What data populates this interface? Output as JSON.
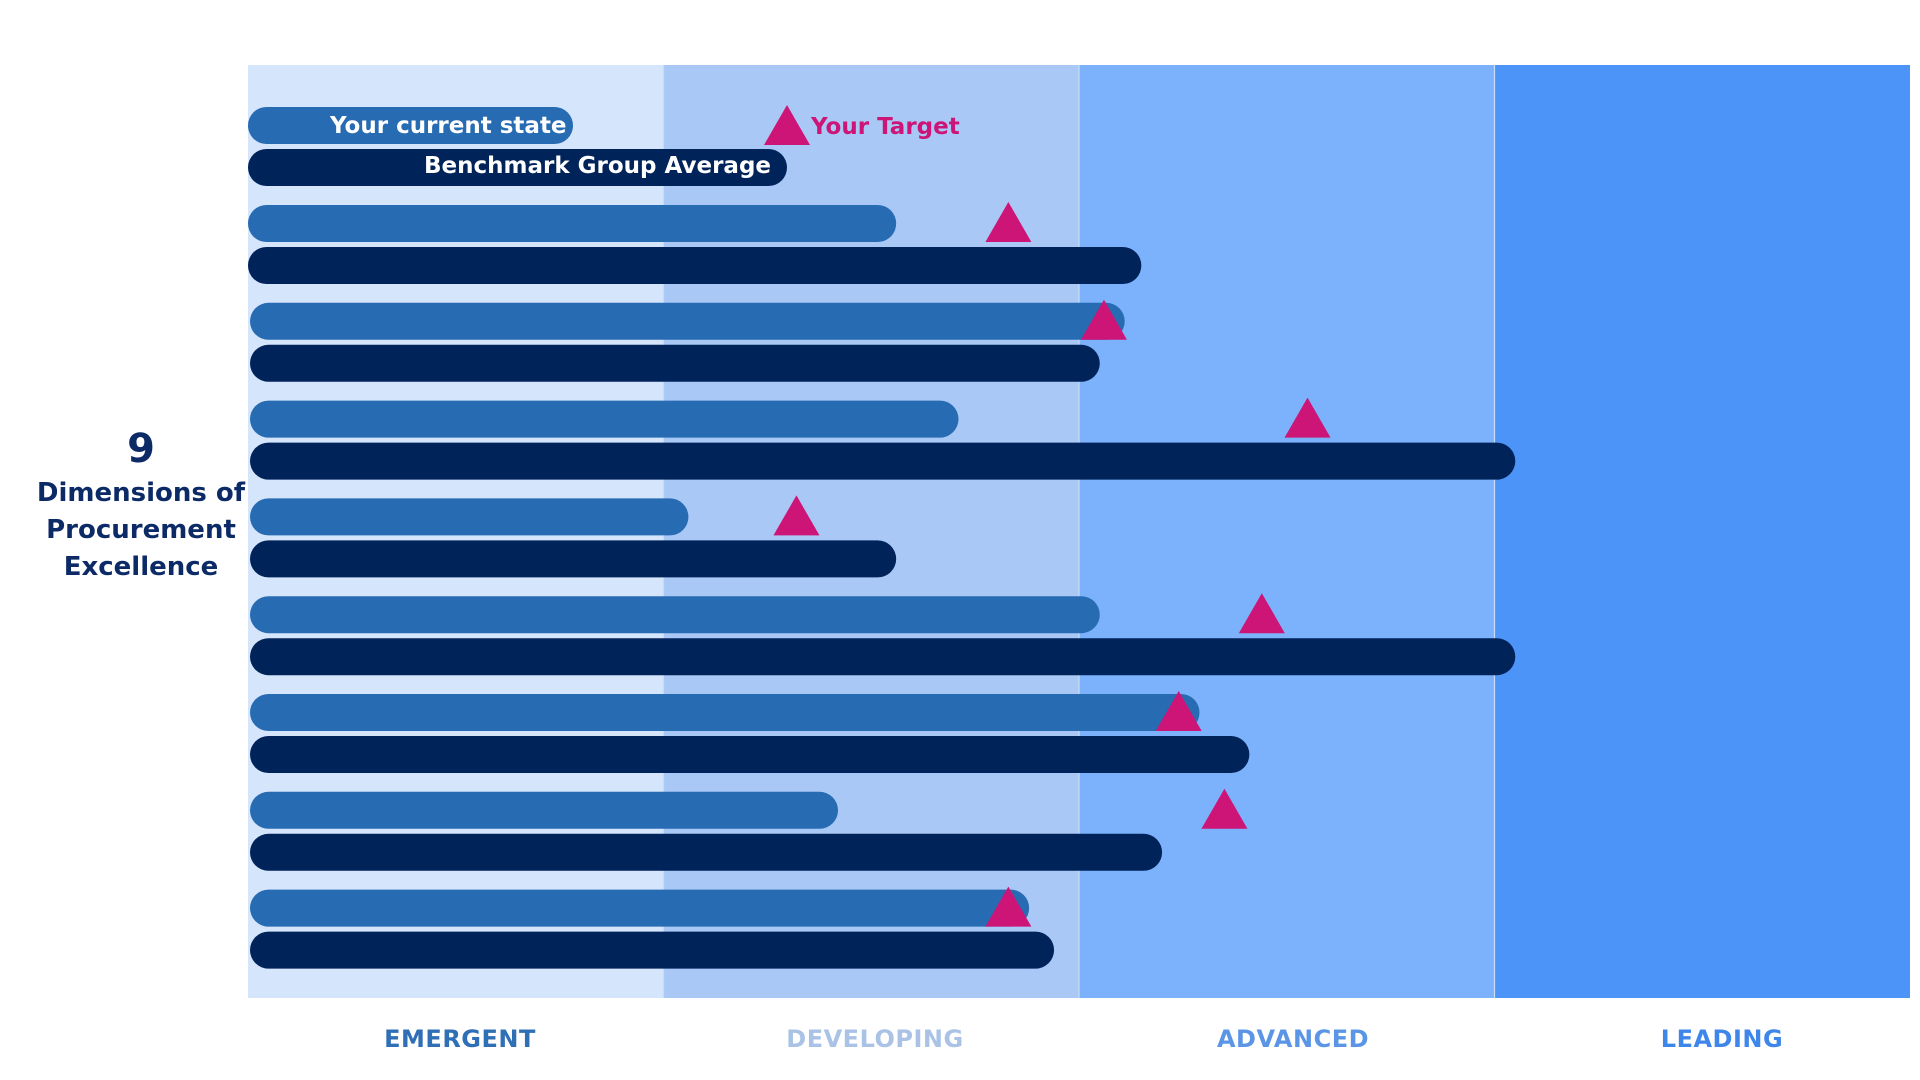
{
  "side_label": {
    "number": "9",
    "text_lines": [
      "Dimensions of",
      "Procurement",
      "Excellence"
    ]
  },
  "legend": {
    "current": "Your current state",
    "benchmark": "Benchmark Group Average",
    "target": "Your Target"
  },
  "colors": {
    "current": "#276bb3",
    "benchmark": "#00235a",
    "target": "#cc1577",
    "band_emergent": "#d4e5fc",
    "band_developing": "#a9c8f5",
    "band_advanced": "#7cb1fb",
    "band_leading": "#4c94f8",
    "label_emergent": "#2f6fb6",
    "label_developing": "#a9c2e6",
    "label_advanced": "#5a95e6",
    "label_leading": "#3f86ea"
  },
  "chart_data": {
    "type": "bar",
    "orientation": "horizontal",
    "xlim": [
      0,
      4
    ],
    "stages": [
      "EMERGENT",
      "DEVELOPING",
      "ADVANCED",
      "LEADING"
    ],
    "series": [
      {
        "name": "Your current state",
        "values": [
          1.56,
          2.11,
          1.71,
          1.06,
          2.05,
          2.29,
          1.42,
          1.88
        ]
      },
      {
        "name": "Benchmark Group Average",
        "values": [
          2.15,
          2.05,
          3.05,
          1.56,
          3.05,
          2.41,
          2.2,
          1.94
        ]
      },
      {
        "name": "Your Target",
        "values": [
          1.83,
          2.06,
          2.55,
          1.32,
          2.44,
          2.24,
          2.35,
          1.83
        ]
      }
    ]
  }
}
